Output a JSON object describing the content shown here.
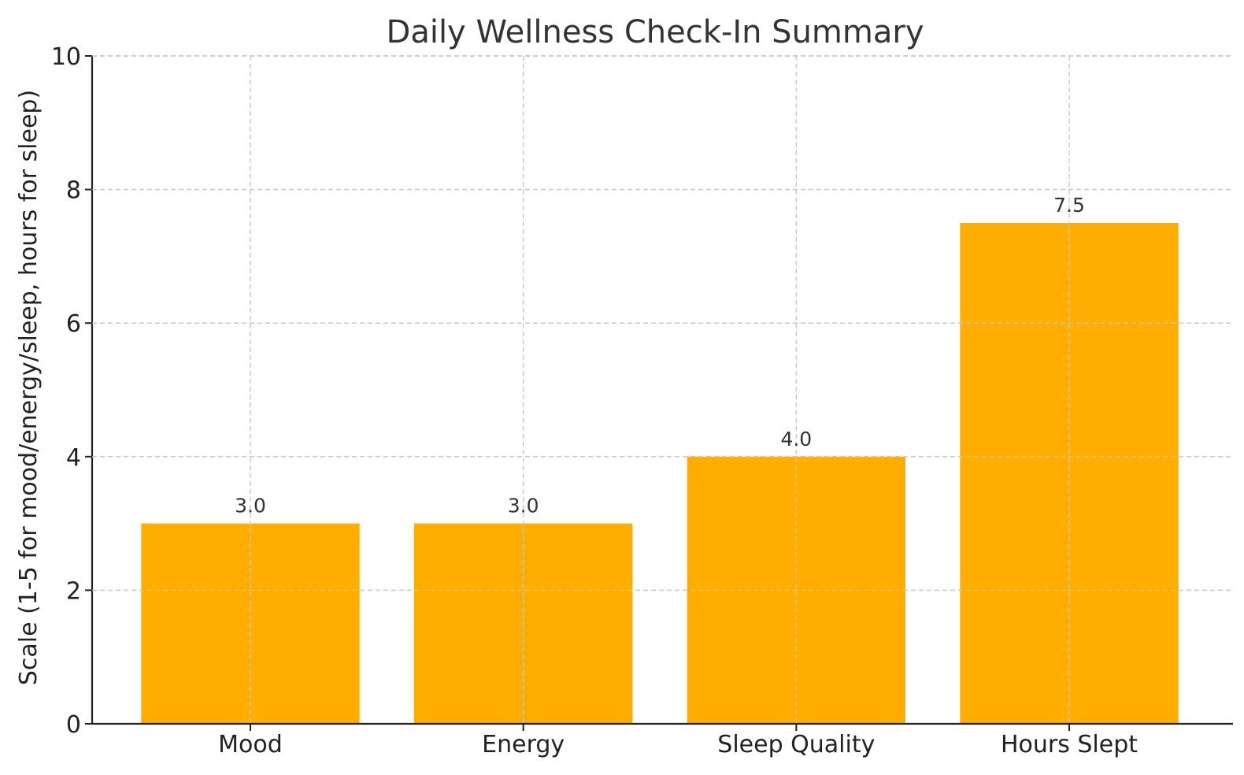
{
  "chart_data": {
    "type": "bar",
    "title": "Daily Wellness Check-In Summary",
    "xlabel": "",
    "ylabel": "Scale (1-5 for mood/energy/sleep, hours for sleep)",
    "categories": [
      "Mood",
      "Energy",
      "Sleep Quality",
      "Hours Slept"
    ],
    "values": [
      3.0,
      3.0,
      4.0,
      7.5
    ],
    "data_labels": [
      "3.0",
      "3.0",
      "4.0",
      "7.5"
    ],
    "ylim": [
      0,
      10
    ],
    "yticks": [
      0,
      2,
      4,
      6,
      8,
      10
    ],
    "ytick_labels": [
      "0",
      "2",
      "4",
      "6",
      "8",
      "10"
    ],
    "grid": true,
    "bar_color": "#FFAE00"
  }
}
